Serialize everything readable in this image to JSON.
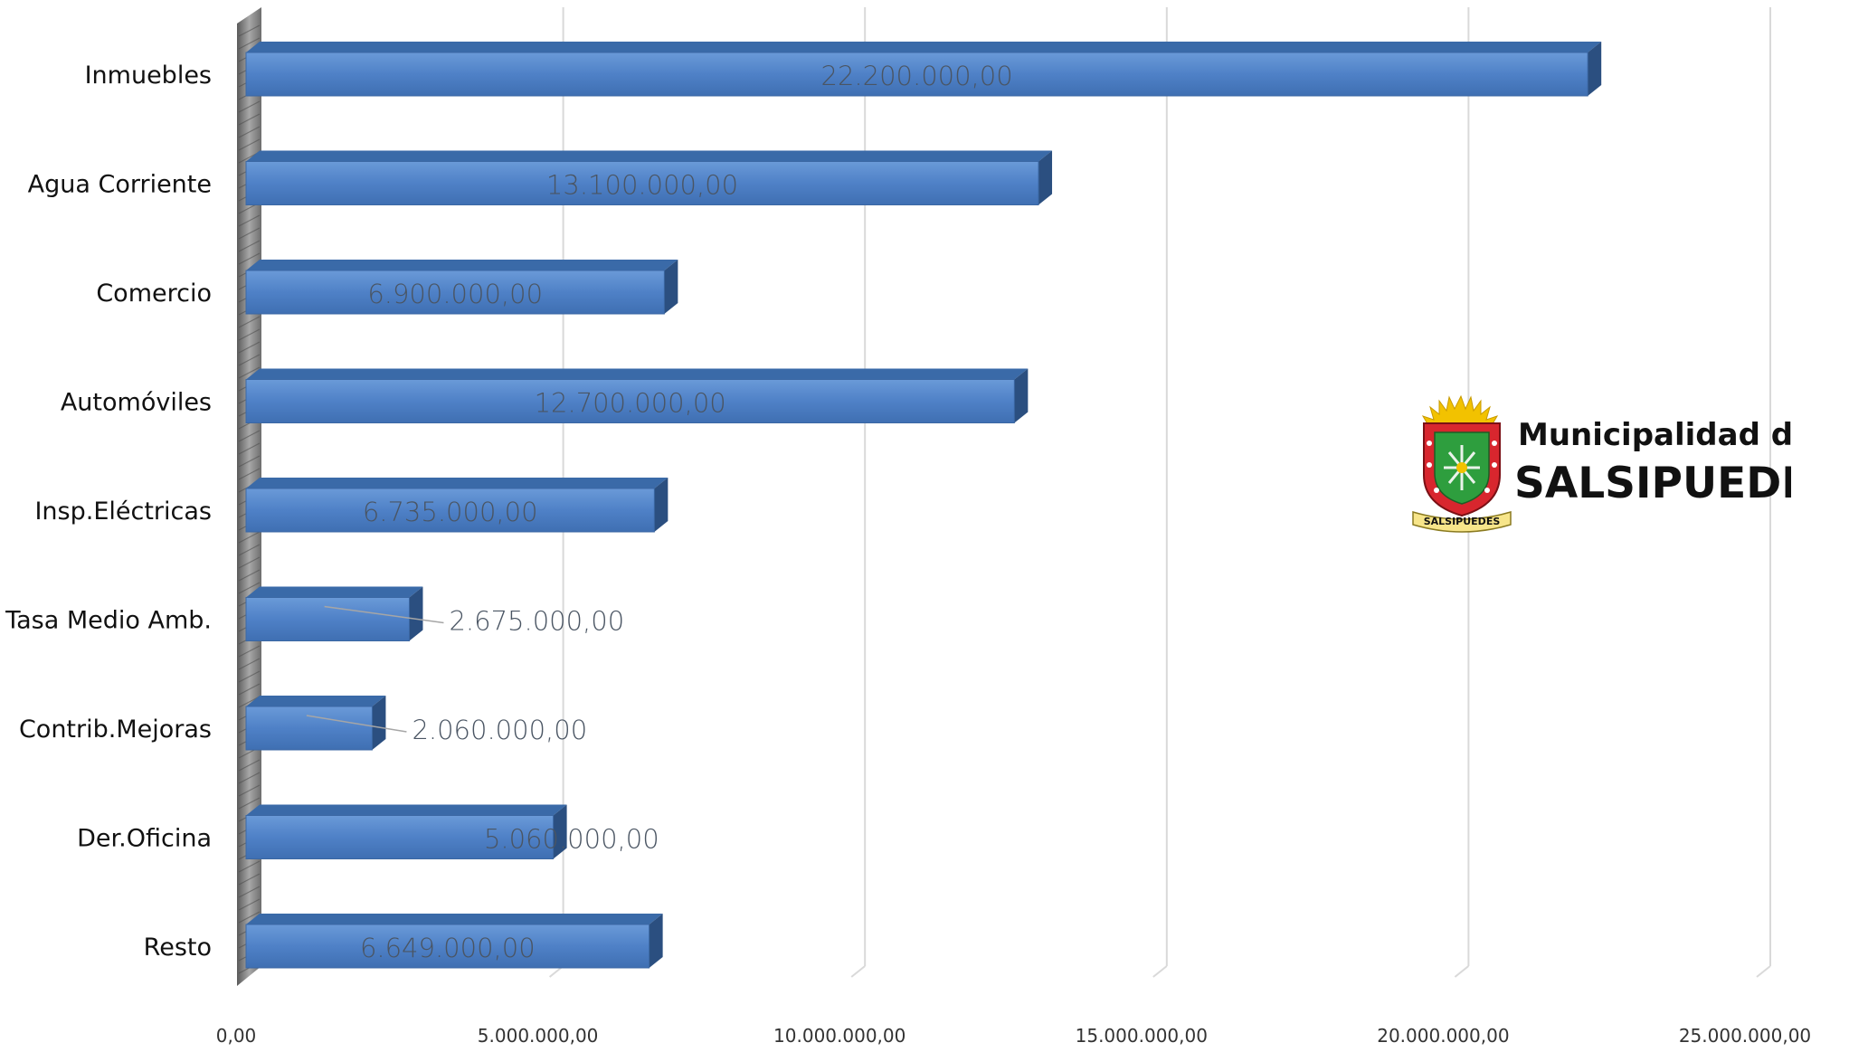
{
  "chart_data": {
    "type": "bar",
    "orientation": "horizontal",
    "categories": [
      "Inmuebles",
      "Agua Corriente",
      "Comercio",
      "Automóviles",
      "Insp.Eléctricas",
      "Tasa Medio Amb.",
      "Contrib.Mejoras",
      "Der.Oficina",
      "Resto"
    ],
    "values": [
      22200000,
      13100000,
      6900000,
      12700000,
      6735000,
      2675000,
      2060000,
      5060000,
      6649000
    ],
    "data_labels": [
      "22.200.000,00",
      "13.100.000,00",
      "6.900.000,00",
      "12.700.000,00",
      "6.735.000,00",
      "2.675.000,00",
      "2.060.000,00",
      "5.060.000,00",
      "6.649.000,00"
    ],
    "x_ticks": [
      0,
      5000000,
      10000000,
      15000000,
      20000000,
      25000000
    ],
    "x_tick_labels": [
      "0,00",
      "5.000.000,00",
      "10.000.000,00",
      "15.000.000,00",
      "20.000.000,00",
      "25.000.000,00"
    ],
    "xlim": [
      0,
      25000000
    ],
    "grid": true,
    "style": "3d",
    "colors": {
      "bar_front": "#4f81c7",
      "bar_top": "#3a6aa8",
      "bar_side": "#2b4f80",
      "grid": "#d9d9d9",
      "wall": "#7f7f7f"
    }
  },
  "logo": {
    "line1": "Municipalidad de",
    "line2": "SALSIPUEDES",
    "ribbon": "SALSIPUEDES",
    "icon": "coat-of-arms-icon"
  }
}
